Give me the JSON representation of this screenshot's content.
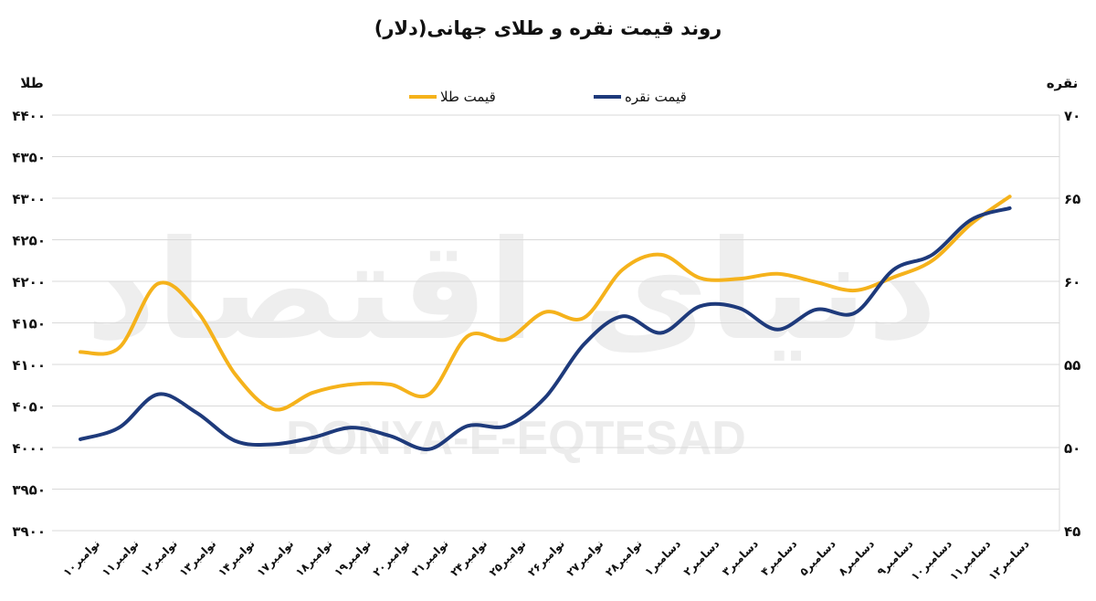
{
  "chart_data": {
    "type": "line",
    "title": "روند قیمت نقره و طلای جهانی(دلار)",
    "y_left_label": "طلا",
    "y_right_label": "نقره",
    "y_left_range": [
      3900,
      4400
    ],
    "y_right_range": [
      45,
      70
    ],
    "y_left_ticks": [
      "۳۹۰۰",
      "۳۹۵۰",
      "۴۰۰۰",
      "۴۰۵۰",
      "۴۱۰۰",
      "۴۱۵۰",
      "۴۲۰۰",
      "۴۲۵۰",
      "۴۳۰۰",
      "۴۳۵۰",
      "۴۴۰۰"
    ],
    "y_left_tick_values": [
      3900,
      3950,
      4000,
      4050,
      4100,
      4150,
      4200,
      4250,
      4300,
      4350,
      4400
    ],
    "y_right_ticks": [
      "۴۵",
      "۵۰",
      "۵۵",
      "۶۰",
      "۶۵",
      "۷۰"
    ],
    "y_right_tick_values": [
      45,
      50,
      55,
      60,
      65,
      70
    ],
    "grid": true,
    "legend_position": "top-center",
    "categories": [
      "۱۰نوامبر",
      "۱۱نوامبر",
      "۱۲نوامبر",
      "۱۳نوامبر",
      "۱۴نوامبر",
      "۱۷نوامبر",
      "۱۸نوامبر",
      "۱۹نوامبر",
      "۲۰نوامبر",
      "۲۱نوامبر",
      "۲۴نوامبر",
      "۲۵نوامبر",
      "۲۶نوامبر",
      "۲۷نوامبر",
      "۲۸نوامبر",
      "۱دسامبر",
      "۲دسامبر",
      "۳دسامبر",
      "۴دسامبر",
      "۵دسامبر",
      "۸دسامبر",
      "۹دسامبر",
      "۱۰دسامبر",
      "۱۱دسامبر",
      "۱۲دسامبر"
    ],
    "series": [
      {
        "name": "قیمت طلا",
        "axis": "left",
        "color": "#F5B21B",
        "values": [
          4115,
          4120,
          4197,
          4165,
          4088,
          4046,
          4066,
          4076,
          4076,
          4064,
          4134,
          4130,
          4163,
          4156,
          4214,
          4232,
          4204,
          4203,
          4209,
          4199,
          4189,
          4205,
          4225,
          4269,
          4302
        ]
      },
      {
        "name": "قیمت نقره",
        "axis": "right",
        "color": "#1E3A7B",
        "values": [
          50.5,
          51.2,
          53.2,
          52.1,
          50.4,
          50.2,
          50.6,
          51.2,
          50.7,
          49.9,
          51.3,
          51.3,
          53.0,
          56.2,
          57.9,
          56.9,
          58.5,
          58.4,
          57.1,
          58.3,
          58.1,
          60.7,
          61.6,
          63.7,
          64.4
        ]
      }
    ]
  },
  "watermark": {
    "logo": "دنیای اقتصاد",
    "text": "DONYA-E-EQTESAD"
  }
}
